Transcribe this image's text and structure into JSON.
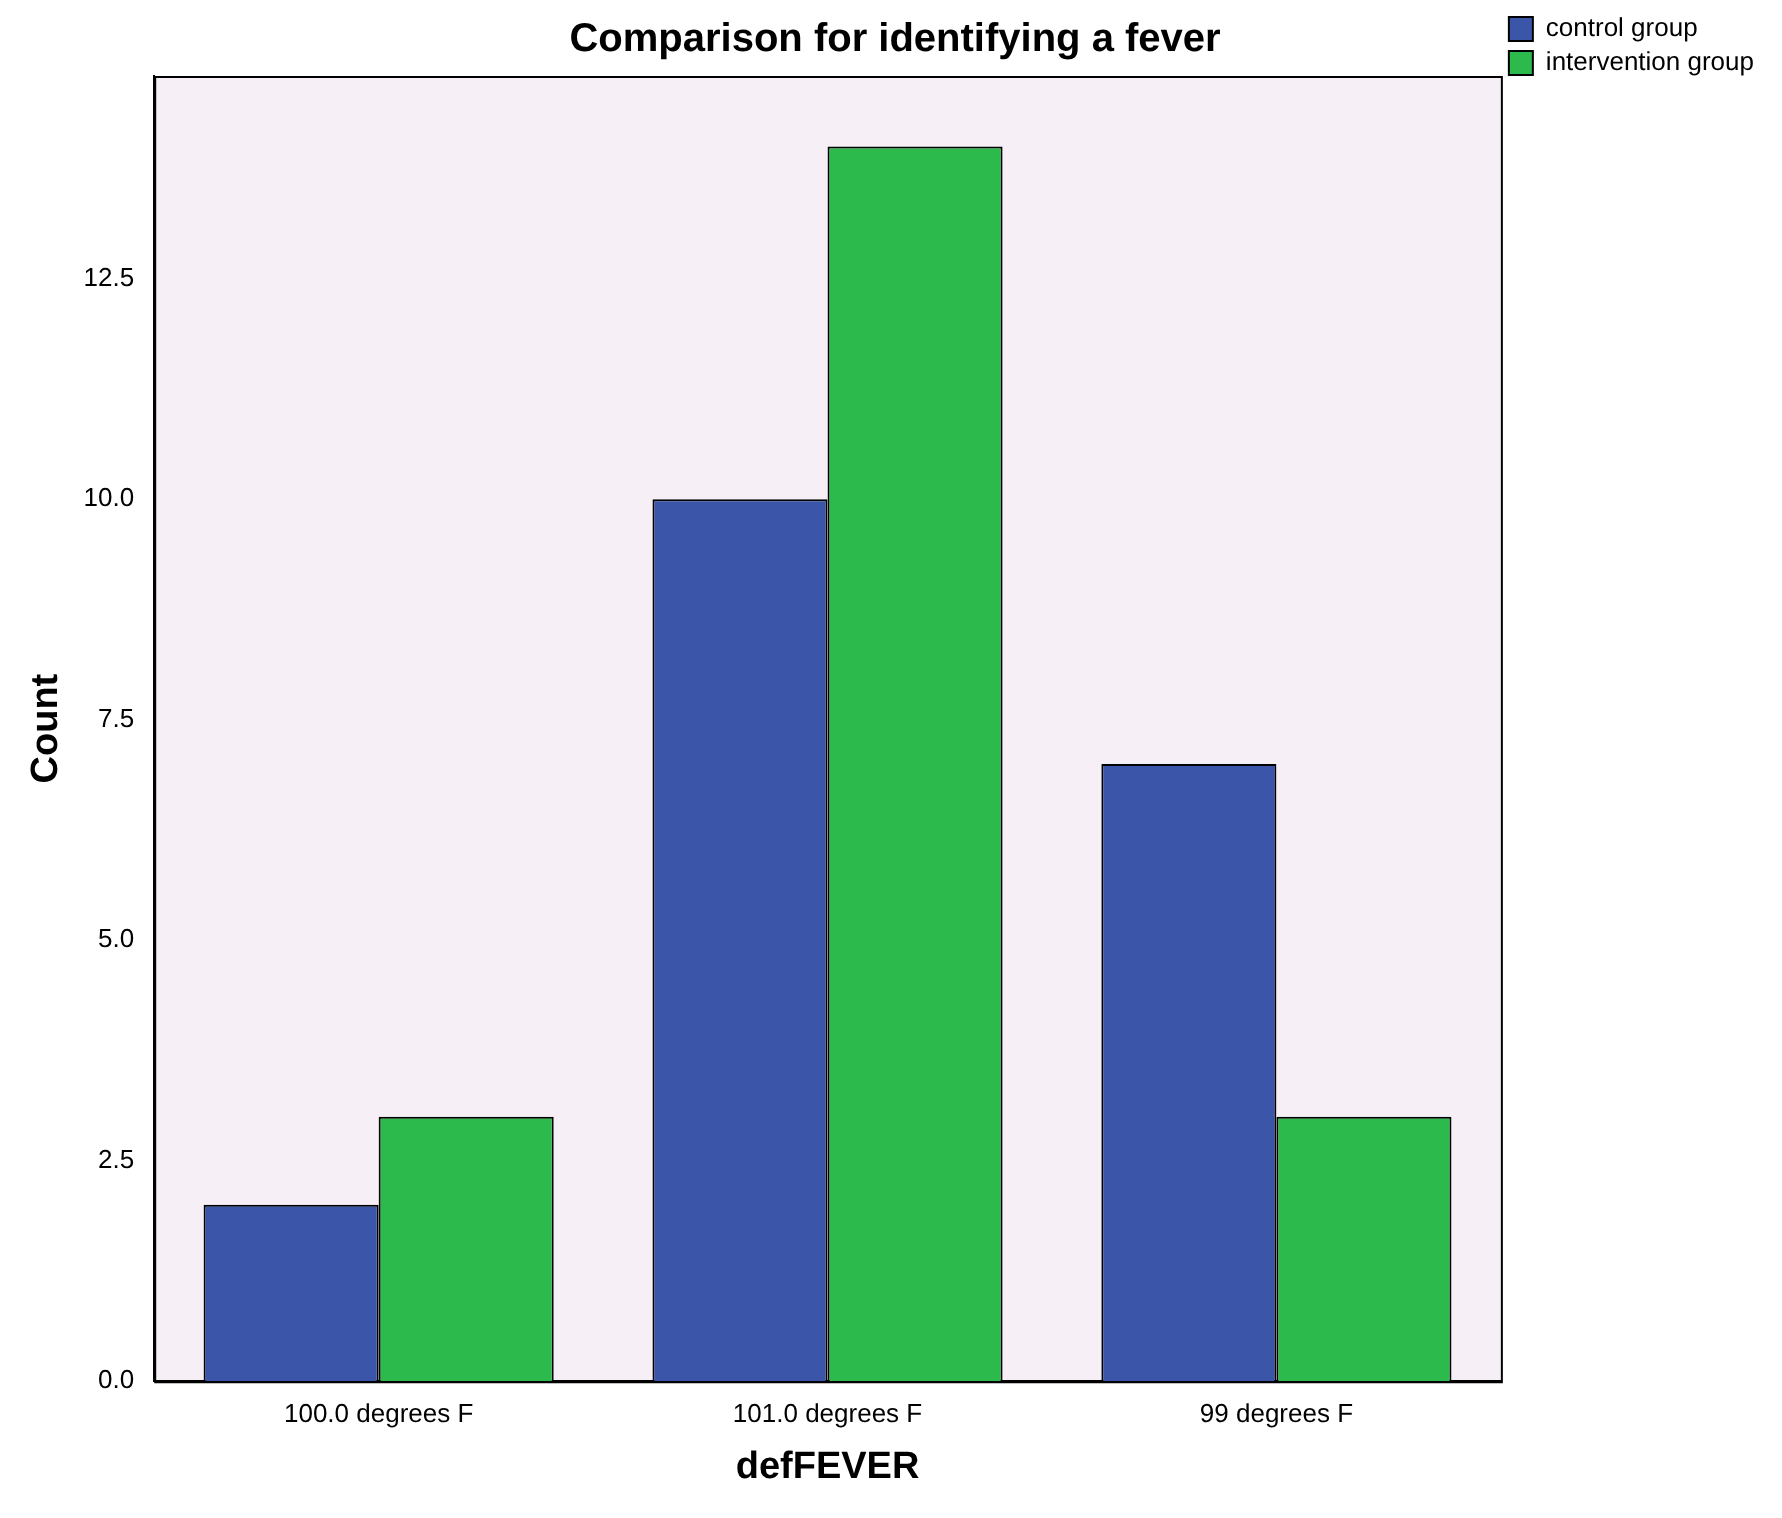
{
  "chart_data": {
    "type": "bar",
    "title": "Comparison for identifying a fever",
    "xlabel": "defFEVER",
    "ylabel": "Count",
    "categories": [
      "100.0 degrees F",
      "101.0 degrees F",
      "99 degrees F"
    ],
    "series": [
      {
        "name": "control group",
        "color": "#3b56a9",
        "values": [
          2,
          10,
          7
        ]
      },
      {
        "name": "intervention group",
        "color": "#2cba4c",
        "values": [
          3,
          14,
          3
        ]
      }
    ],
    "ylim": [
      0,
      14.8
    ],
    "yticks": [
      {
        "value": 0,
        "label": "0.0"
      },
      {
        "value": 2.5,
        "label": "2.5"
      },
      {
        "value": 5,
        "label": "5.0"
      },
      {
        "value": 7.5,
        "label": "7.5"
      },
      {
        "value": 10,
        "label": "10.0"
      },
      {
        "value": 12.5,
        "label": "12.5"
      }
    ],
    "grid": false,
    "legend": "top right"
  }
}
